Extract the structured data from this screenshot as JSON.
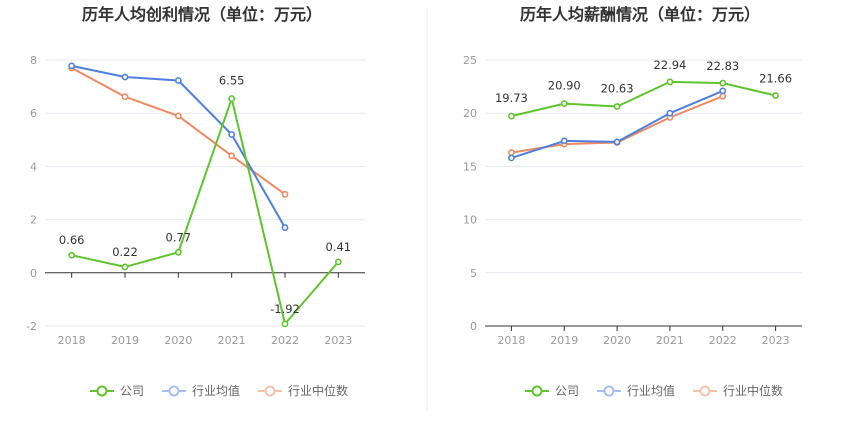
{
  "chart_data": [
    {
      "type": "line",
      "title": "历年人均创利情况（单位：万元）",
      "categories": [
        "2018",
        "2019",
        "2020",
        "2021",
        "2022",
        "2023"
      ],
      "ylim": [
        -2,
        8
      ],
      "yticks": [
        -2,
        0,
        2,
        4,
        6,
        8
      ],
      "grid": true,
      "legend_position": "bottom",
      "series": [
        {
          "name": "公司",
          "color": "#5ec52c",
          "values": [
            0.66,
            0.22,
            0.77,
            6.55,
            -1.92,
            0.41
          ],
          "labels": [
            "0.66",
            "0.22",
            "0.77",
            "6.55",
            "-1.92",
            "0.41"
          ]
        },
        {
          "name": "行业均值",
          "color": "#4d7fe0",
          "values": [
            7.78,
            7.36,
            7.23,
            5.2,
            1.7,
            null
          ],
          "labels": null
        },
        {
          "name": "行业中位数",
          "color": "#f0895e",
          "values": [
            7.7,
            6.62,
            5.9,
            4.4,
            2.95,
            null
          ],
          "labels": null
        }
      ]
    },
    {
      "type": "line",
      "title": "历年人均薪酬情况（单位：万元）",
      "categories": [
        "2018",
        "2019",
        "2020",
        "2021",
        "2022",
        "2023"
      ],
      "ylim": [
        0,
        25
      ],
      "yticks": [
        0,
        5,
        10,
        15,
        20,
        25
      ],
      "grid": true,
      "legend_position": "bottom",
      "series": [
        {
          "name": "公司",
          "color": "#5ec52c",
          "values": [
            19.73,
            20.9,
            20.63,
            22.94,
            22.83,
            21.66
          ],
          "labels": [
            "19.73",
            "20.90",
            "20.63",
            "22.94",
            "22.83",
            "21.66"
          ]
        },
        {
          "name": "行业均值",
          "color": "#4d7fe0",
          "values": [
            15.8,
            17.4,
            17.3,
            20.0,
            22.1,
            null
          ],
          "labels": null
        },
        {
          "name": "行业中位数",
          "color": "#f0895e",
          "values": [
            16.3,
            17.1,
            17.25,
            19.6,
            21.6,
            null
          ],
          "labels": null
        }
      ]
    }
  ]
}
